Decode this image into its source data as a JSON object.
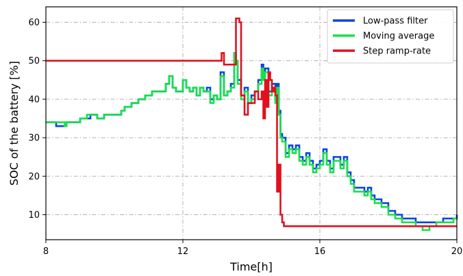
{
  "chart_data": {
    "type": "line",
    "title": "",
    "xlabel": "Time[h]",
    "ylabel": "SOC of the battery [%]",
    "xlim": [
      8,
      20
    ],
    "ylim": [
      3.5,
      64
    ],
    "xticks": [
      8,
      12,
      16,
      20
    ],
    "yticks": [
      10,
      20,
      30,
      40,
      50,
      60
    ],
    "grid": true,
    "grid_style": "dash-dot",
    "legend_position": "top-right",
    "series": [
      {
        "name": "Low-pass filter",
        "color": "#0b45e0",
        "x": [
          8.0,
          8.25,
          8.3,
          8.55,
          8.6,
          8.9,
          9.0,
          9.2,
          9.3,
          9.5,
          9.6,
          9.7,
          10.0,
          10.2,
          10.3,
          10.5,
          10.7,
          10.9,
          11.1,
          11.3,
          11.5,
          11.6,
          11.7,
          11.8,
          11.9,
          12.0,
          12.1,
          12.2,
          12.3,
          12.4,
          12.5,
          12.6,
          12.7,
          12.8,
          12.9,
          13.0,
          13.1,
          13.2,
          13.3,
          13.4,
          13.5,
          13.55,
          13.6,
          13.7,
          13.8,
          13.9,
          14.0,
          14.1,
          14.2,
          14.3,
          14.35,
          14.4,
          14.5,
          14.6,
          14.7,
          14.75,
          14.8,
          14.85,
          14.9,
          15.0,
          15.1,
          15.2,
          15.3,
          15.4,
          15.5,
          15.6,
          15.7,
          15.8,
          15.9,
          16.0,
          16.1,
          16.2,
          16.3,
          16.4,
          16.5,
          16.6,
          16.7,
          16.8,
          16.9,
          17.0,
          17.2,
          17.3,
          17.4,
          17.5,
          17.6,
          17.8,
          18.0,
          18.2,
          18.4,
          18.6,
          18.8,
          19.0,
          19.2,
          19.4,
          19.6,
          19.8,
          19.9,
          20.0
        ],
        "values": [
          34,
          34,
          33,
          33,
          34,
          34,
          35,
          35,
          36,
          35,
          35,
          36,
          36,
          37,
          38,
          39,
          40,
          41,
          42,
          42,
          44,
          46,
          43,
          42,
          42,
          45,
          43,
          42,
          43,
          41,
          43,
          42,
          43,
          40,
          41,
          40,
          47,
          41,
          42,
          44,
          52,
          50,
          45,
          41,
          43,
          39,
          41,
          42,
          45,
          49,
          46,
          48,
          42,
          44,
          40,
          44,
          37,
          31,
          30,
          26,
          28,
          27,
          28,
          25,
          24,
          26,
          24,
          22,
          23,
          24,
          27,
          24,
          22,
          25,
          25,
          23,
          25,
          21,
          19,
          17,
          17,
          16,
          17,
          15,
          14,
          13,
          11,
          10,
          9,
          9,
          8,
          8,
          8,
          8,
          9,
          9,
          9,
          10
        ]
      },
      {
        "name": "Moving average",
        "color": "#19e04a",
        "x": [
          8.0,
          8.25,
          8.3,
          8.55,
          8.6,
          8.9,
          9.0,
          9.2,
          9.3,
          9.5,
          9.6,
          9.7,
          10.0,
          10.2,
          10.3,
          10.5,
          10.7,
          10.9,
          11.1,
          11.3,
          11.5,
          11.6,
          11.7,
          11.8,
          11.9,
          12.0,
          12.1,
          12.2,
          12.3,
          12.4,
          12.5,
          12.6,
          12.7,
          12.8,
          12.9,
          13.0,
          13.1,
          13.2,
          13.3,
          13.4,
          13.5,
          13.55,
          13.6,
          13.7,
          13.8,
          13.9,
          14.0,
          14.1,
          14.2,
          14.3,
          14.35,
          14.4,
          14.5,
          14.6,
          14.7,
          14.75,
          14.8,
          14.85,
          14.9,
          15.0,
          15.1,
          15.2,
          15.3,
          15.4,
          15.5,
          15.6,
          15.7,
          15.8,
          15.9,
          16.0,
          16.1,
          16.2,
          16.3,
          16.4,
          16.5,
          16.6,
          16.7,
          16.8,
          16.9,
          17.0,
          17.2,
          17.3,
          17.4,
          17.5,
          17.6,
          17.8,
          18.0,
          18.2,
          18.4,
          18.6,
          18.8,
          19.0,
          19.2,
          19.4,
          19.6,
          19.8,
          19.9,
          20.0
        ],
        "values": [
          34,
          34,
          34,
          33,
          34,
          34,
          35,
          36,
          36,
          35,
          35,
          36,
          36,
          37,
          38,
          39,
          40,
          41,
          42,
          42,
          44,
          46,
          43,
          42,
          42,
          45,
          43,
          42,
          43,
          41,
          43,
          42,
          42,
          39,
          41,
          40,
          46,
          41,
          42,
          43,
          52,
          50,
          44,
          40,
          42,
          39,
          40,
          42,
          44,
          48,
          45,
          47,
          41,
          43,
          39,
          43,
          36,
          30,
          29,
          25,
          27,
          26,
          27,
          24,
          23,
          25,
          23,
          21,
          22,
          23,
          26,
          23,
          21,
          24,
          24,
          22,
          24,
          20,
          18,
          16,
          16,
          15,
          16,
          14,
          13,
          12,
          10,
          9,
          8,
          8,
          7,
          6,
          7,
          8,
          8,
          8,
          9,
          9
        ]
      },
      {
        "name": "Step ramp-rate",
        "color": "#e0101f",
        "x": [
          8.0,
          13.1,
          13.13,
          13.2,
          13.5,
          13.55,
          13.6,
          13.65,
          13.7,
          13.8,
          13.9,
          14.1,
          14.2,
          14.3,
          14.35,
          14.4,
          14.45,
          14.5,
          14.55,
          14.6,
          14.65,
          14.7,
          14.75,
          14.8,
          14.85,
          14.9,
          14.95,
          15.0,
          15.5,
          16.0,
          17.0,
          18.0,
          19.0,
          20.0
        ],
        "values": [
          50,
          50,
          52,
          49,
          49,
          61,
          61,
          60,
          41,
          36,
          39,
          42,
          40,
          42,
          35,
          45,
          38,
          47,
          45,
          42,
          43,
          41,
          16,
          23,
          10,
          8,
          7,
          7,
          7,
          7,
          7,
          7,
          7,
          7
        ]
      }
    ]
  }
}
